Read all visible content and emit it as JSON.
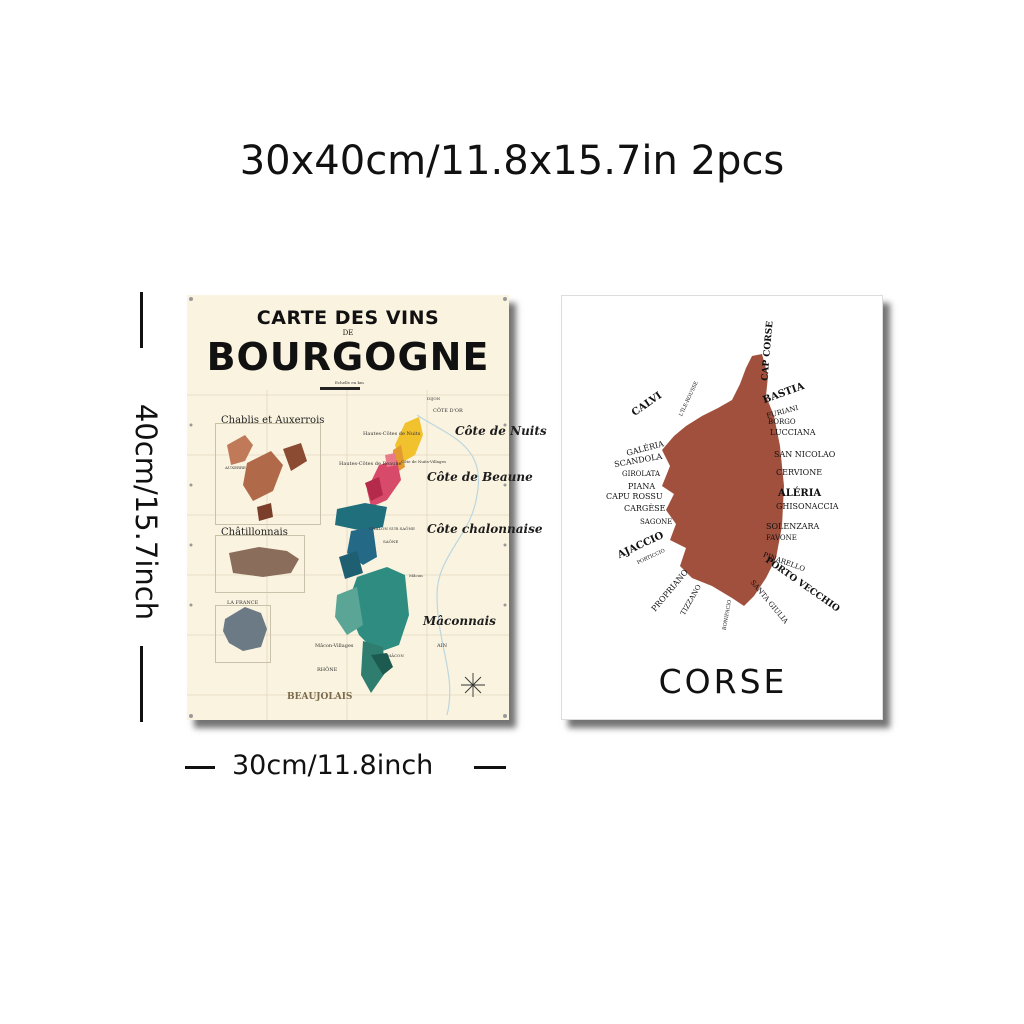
{
  "headline": "30x40cm/11.8x15.7in 2pcs",
  "dimensions": {
    "height_label": "40cm/15.7inch",
    "width_label": "30cm/11.8inch"
  },
  "bourgogne_poster": {
    "title_top": "CARTE DES VINS",
    "title_de": "DE",
    "title_main": "BOURGOGNE",
    "scale_label": "Echelle en km",
    "dijon": "DIJON",
    "cote_dor": "CÔTE D'OR",
    "regions": {
      "cote_nuits": "Côte de Nuits",
      "cote_beaune": "Côte de Beaune",
      "cote_chalonnaise": "Côte chalonnaise",
      "maconnais": "Mâconnais",
      "beaujolais": "BEAUJOLAIS"
    },
    "insets": {
      "chablis": "Chablis et Auxerrois",
      "auxerre": "AUXERRE",
      "chatillonnais": "Châtillonnais",
      "la_france": "LA FRANCE"
    },
    "towns": {
      "hautes_cotes_nuits": "Hautes-Côtes de Nuits",
      "hautes_cotes_beaune": "Hautes-Côtes de Beaune",
      "cote_nuits_villages": "Côte de Nuits-Villages",
      "chalon": "CHALON SUR SAÔNE",
      "macon": "MÂCON",
      "macon_villages": "Mâcon-Villages",
      "macon_label": "Mâcon",
      "saone": "SAÔNE",
      "ain": "AIN",
      "rhone": "RHÔNE"
    },
    "colors": {
      "background": "#faf3e0",
      "nuits": "#f2c12e",
      "beaune": "#d84a6a",
      "chalonnaise": "#1f6f7d",
      "maconnais": "#2f8c80",
      "chablis": "#c07a5a",
      "chatillon": "#8a6d5a",
      "france": "#6b7a84"
    }
  },
  "corse_poster": {
    "title": "CORSE",
    "island_color": "#a0503d",
    "towns_left": [
      "CALVI",
      "L'ÎLE-ROUSSE",
      "GALÉRIA",
      "SCANDOLA",
      "GIROLATA",
      "PIANA",
      "CAPU ROSSU",
      "CARGÈSE",
      "SAGONE",
      "AJACCIO",
      "PORTICCIO",
      "PROPRIANO",
      "TIZZANO",
      "BONIFACIO"
    ],
    "towns_right": [
      "CAP CORSE",
      "BASTIA",
      "FURIANI",
      "BORGO",
      "LUCCIANA",
      "SAN NICOLAO",
      "CERVIONE",
      "ALÉRIA",
      "GHISONACCIA",
      "SOLENZARA",
      "FAVONE",
      "PINARELLO",
      "PORTO VECCHIO",
      "SANTA GIULIA"
    ]
  }
}
